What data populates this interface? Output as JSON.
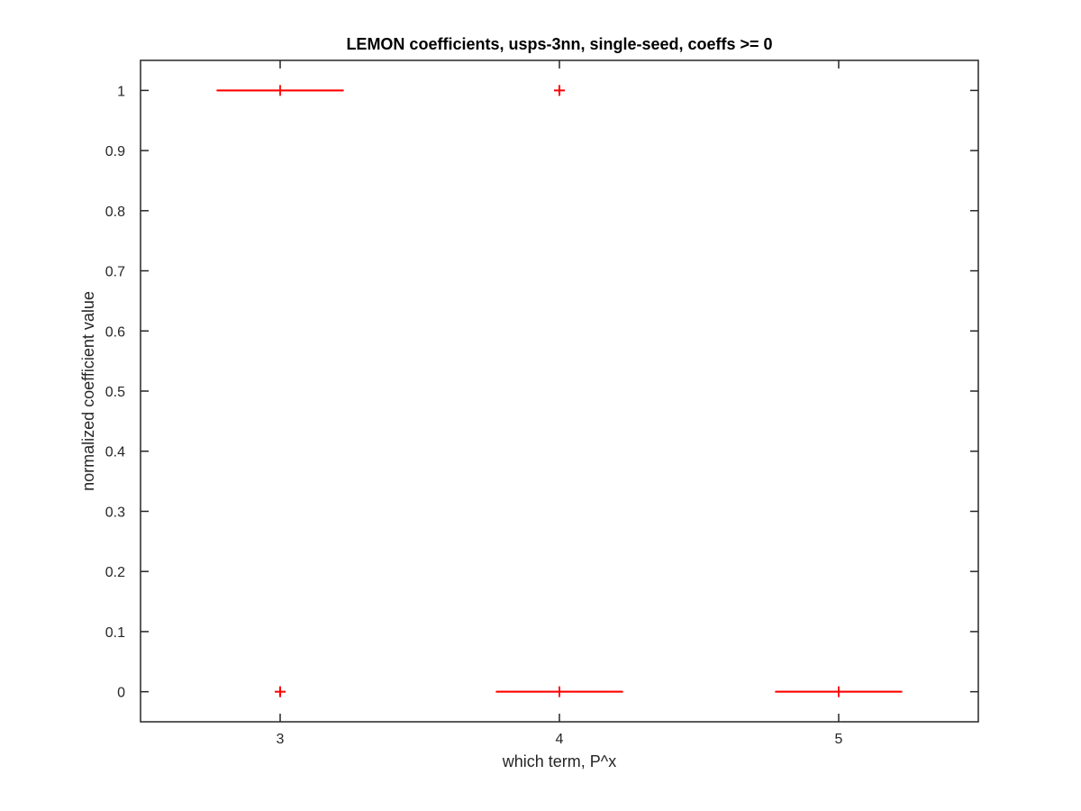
{
  "chart_data": {
    "type": "boxplot",
    "title": "LEMON coefficients, usps-3nn, single-seed, coeffs >= 0",
    "xlabel": "which term, P^x",
    "ylabel": "normalized coefficient value",
    "categories": [
      "3",
      "4",
      "5"
    ],
    "boxes": [
      {
        "category": "3",
        "q1": 1,
        "median": 1,
        "q3": 1,
        "whisker_low": 1,
        "whisker_high": 1,
        "outliers": [
          0
        ]
      },
      {
        "category": "4",
        "q1": 0,
        "median": 0,
        "q3": 0,
        "whisker_low": 0,
        "whisker_high": 0,
        "outliers": [
          1
        ]
      },
      {
        "category": "5",
        "q1": 0,
        "median": 0,
        "q3": 0,
        "whisker_low": 0,
        "whisker_high": 0,
        "outliers": []
      }
    ],
    "xlim": [
      2.5,
      5.5
    ],
    "ylim": [
      -0.05,
      1.05
    ],
    "yticks": [
      0,
      0.1,
      0.2,
      0.3,
      0.4,
      0.5,
      0.6,
      0.7,
      0.8,
      0.9,
      1
    ],
    "ytick_labels": [
      "0",
      "0.1",
      "0.2",
      "0.3",
      "0.4",
      "0.5",
      "0.6",
      "0.7",
      "0.8",
      "0.9",
      "1"
    ],
    "grid": false,
    "colors": {
      "box": "#ff0000",
      "outlier": "#ff0000",
      "axes": "#262626"
    }
  }
}
